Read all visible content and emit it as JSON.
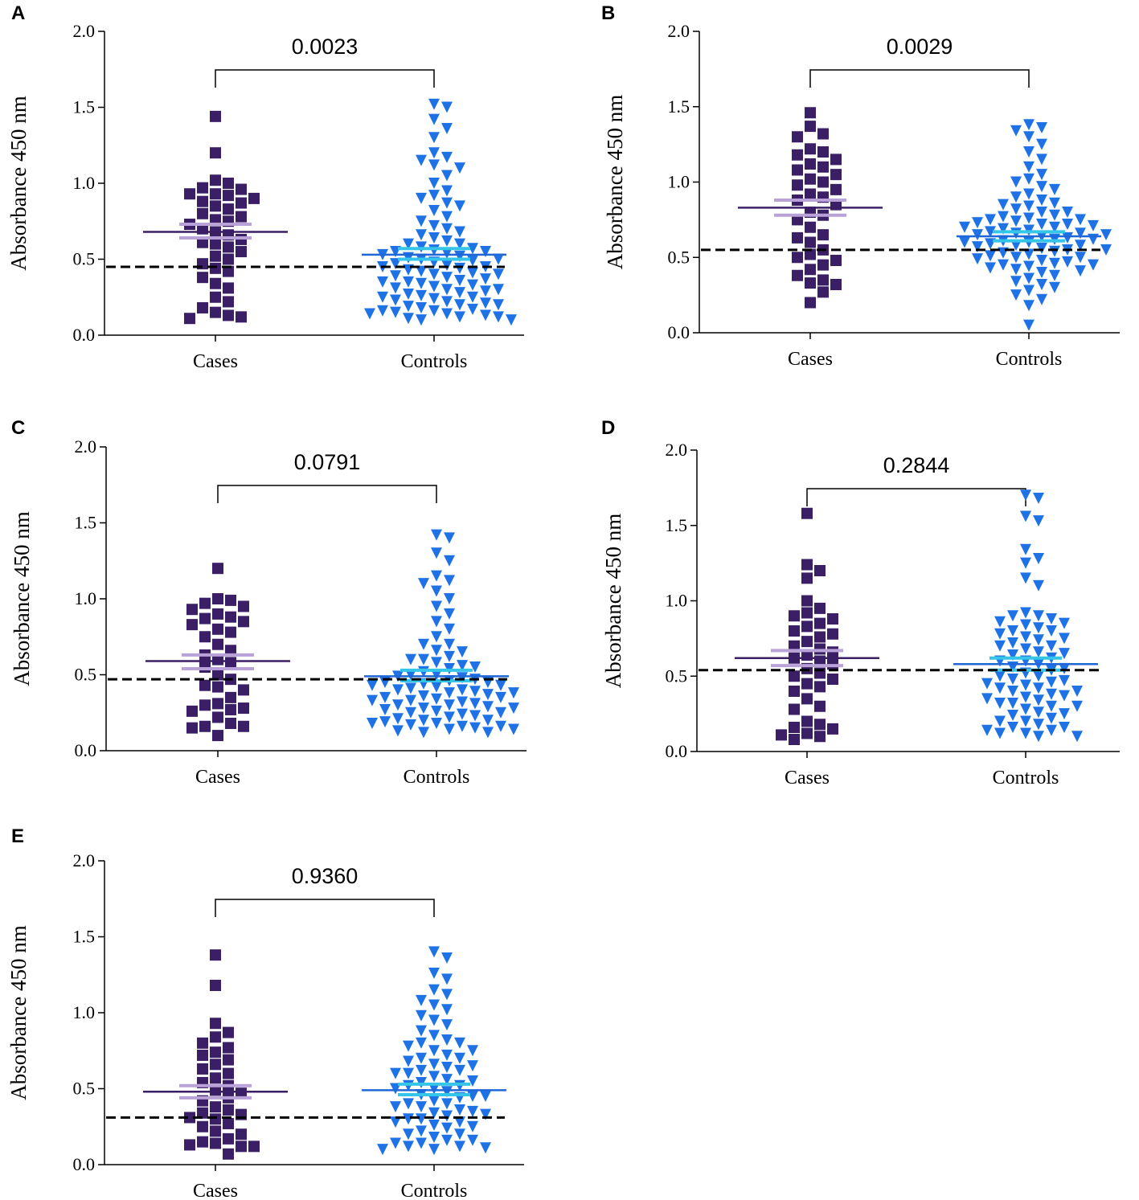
{
  "colors": {
    "cases_marker": "#3b1f66",
    "controls_marker": "#1f72e6",
    "cases_mean": "#3b1f66",
    "cases_sem": "#b9a2d8",
    "controls_mean": "#1f66d6",
    "controls_sem": "#35c5e8",
    "cutoff": "#000000"
  },
  "chart_data": [
    {
      "panel": "A",
      "type": "scatter",
      "ylabel": "Absorbance 450 nm",
      "ylim": [
        0,
        2.0
      ],
      "yticks": [
        "0.0",
        "0.5",
        "1.0",
        "1.5",
        "2.0"
      ],
      "categories": [
        "Cases",
        "Controls"
      ],
      "p_value": "0.0023",
      "cutoff": 0.45,
      "series": [
        {
          "name": "Cases",
          "marker": "square",
          "mean": 0.68,
          "sem_low": 0.64,
          "sem_high": 0.73,
          "values": [
            1.44,
            1.2,
            1.02,
            1.0,
            0.97,
            0.96,
            0.93,
            0.93,
            0.92,
            0.9,
            0.88,
            0.87,
            0.85,
            0.83,
            0.8,
            0.78,
            0.76,
            0.75,
            0.73,
            0.7,
            0.68,
            0.66,
            0.63,
            0.61,
            0.6,
            0.58,
            0.55,
            0.52,
            0.5,
            0.47,
            0.44,
            0.42,
            0.38,
            0.34,
            0.31,
            0.25,
            0.22,
            0.18,
            0.15,
            0.13,
            0.12,
            0.11
          ]
        },
        {
          "name": "Controls",
          "marker": "triangle-down",
          "mean": 0.53,
          "sem_low": 0.5,
          "sem_high": 0.57,
          "values": [
            1.52,
            1.5,
            1.42,
            1.36,
            1.3,
            1.2,
            1.17,
            1.15,
            1.12,
            1.1,
            1.05,
            1.0,
            0.95,
            0.92,
            0.9,
            0.87,
            0.85,
            0.82,
            0.78,
            0.75,
            0.72,
            0.7,
            0.68,
            0.66,
            0.64,
            0.62,
            0.6,
            0.58,
            0.57,
            0.56,
            0.55,
            0.54,
            0.53,
            0.52,
            0.51,
            0.5,
            0.49,
            0.48,
            0.47,
            0.46,
            0.45,
            0.44,
            0.43,
            0.42,
            0.41,
            0.4,
            0.39,
            0.38,
            0.37,
            0.36,
            0.35,
            0.34,
            0.33,
            0.32,
            0.31,
            0.3,
            0.29,
            0.28,
            0.27,
            0.26,
            0.25,
            0.24,
            0.23,
            0.22,
            0.21,
            0.2,
            0.19,
            0.18,
            0.17,
            0.16,
            0.15,
            0.14,
            0.13,
            0.12,
            0.11,
            0.1,
            0.1,
            0.12,
            0.14,
            0.16,
            0.2,
            0.25,
            0.3,
            0.35,
            0.4,
            0.45,
            0.5,
            0.55,
            0.6
          ]
        }
      ]
    },
    {
      "panel": "B",
      "type": "scatter",
      "ylabel": "Absorbance 450 nm",
      "ylim": [
        0,
        2.0
      ],
      "yticks": [
        "0.0",
        "0.5",
        "1.0",
        "1.5",
        "2.0"
      ],
      "categories": [
        "Cases",
        "Controls"
      ],
      "p_value": "0.0029",
      "cutoff": 0.55,
      "series": [
        {
          "name": "Cases",
          "marker": "square",
          "mean": 0.83,
          "sem_low": 0.78,
          "sem_high": 0.88,
          "values": [
            1.46,
            1.37,
            1.32,
            1.3,
            1.22,
            1.2,
            1.18,
            1.15,
            1.12,
            1.1,
            1.08,
            1.05,
            1.02,
            1.0,
            0.98,
            0.95,
            0.92,
            0.9,
            0.88,
            0.85,
            0.8,
            0.78,
            0.75,
            0.7,
            0.65,
            0.63,
            0.6,
            0.55,
            0.52,
            0.5,
            0.48,
            0.45,
            0.42,
            0.38,
            0.35,
            0.33,
            0.32,
            0.27,
            0.2
          ]
        },
        {
          "name": "Controls",
          "marker": "triangle-down",
          "mean": 0.64,
          "sem_low": 0.61,
          "sem_high": 0.67,
          "values": [
            1.38,
            1.36,
            1.34,
            1.3,
            1.25,
            1.2,
            1.15,
            1.1,
            1.05,
            1.02,
            1.0,
            0.97,
            0.95,
            0.92,
            0.9,
            0.88,
            0.86,
            0.84,
            0.82,
            0.8,
            0.78,
            0.77,
            0.76,
            0.75,
            0.74,
            0.73,
            0.72,
            0.71,
            0.7,
            0.69,
            0.68,
            0.67,
            0.66,
            0.65,
            0.64,
            0.63,
            0.62,
            0.61,
            0.6,
            0.59,
            0.58,
            0.57,
            0.56,
            0.55,
            0.54,
            0.53,
            0.52,
            0.51,
            0.5,
            0.49,
            0.48,
            0.47,
            0.46,
            0.45,
            0.44,
            0.43,
            0.42,
            0.41,
            0.4,
            0.38,
            0.36,
            0.34,
            0.32,
            0.3,
            0.28,
            0.25,
            0.22,
            0.18,
            0.05,
            0.55,
            0.6,
            0.65,
            0.7,
            0.75,
            0.5,
            0.45,
            0.62,
            0.58,
            0.66,
            0.72,
            0.8,
            0.85
          ]
        }
      ]
    },
    {
      "panel": "C",
      "type": "scatter",
      "ylabel": "Absorbance 450 nm",
      "ylim": [
        0,
        2.0
      ],
      "yticks": [
        "0.0",
        "0.5",
        "1.0",
        "1.5",
        "2.0"
      ],
      "categories": [
        "Cases",
        "Controls"
      ],
      "p_value": "0.0791",
      "cutoff": 0.47,
      "series": [
        {
          "name": "Cases",
          "marker": "square",
          "mean": 0.59,
          "sem_low": 0.54,
          "sem_high": 0.63,
          "values": [
            1.2,
            1.0,
            0.99,
            0.97,
            0.95,
            0.93,
            0.9,
            0.88,
            0.87,
            0.85,
            0.83,
            0.8,
            0.78,
            0.75,
            0.7,
            0.66,
            0.63,
            0.6,
            0.58,
            0.55,
            0.5,
            0.47,
            0.43,
            0.42,
            0.4,
            0.35,
            0.31,
            0.3,
            0.28,
            0.27,
            0.26,
            0.22,
            0.18,
            0.16,
            0.16,
            0.15,
            0.1
          ]
        },
        {
          "name": "Controls",
          "marker": "triangle-down",
          "mean": 0.49,
          "sem_low": 0.46,
          "sem_high": 0.53,
          "values": [
            1.42,
            1.4,
            1.3,
            1.25,
            1.15,
            1.12,
            1.1,
            1.05,
            1.0,
            0.95,
            0.9,
            0.85,
            0.8,
            0.75,
            0.7,
            0.66,
            0.62,
            0.6,
            0.58,
            0.56,
            0.54,
            0.52,
            0.5,
            0.49,
            0.48,
            0.47,
            0.46,
            0.45,
            0.44,
            0.43,
            0.42,
            0.41,
            0.4,
            0.39,
            0.38,
            0.37,
            0.36,
            0.35,
            0.34,
            0.33,
            0.32,
            0.31,
            0.3,
            0.29,
            0.28,
            0.27,
            0.26,
            0.25,
            0.24,
            0.23,
            0.22,
            0.21,
            0.2,
            0.19,
            0.18,
            0.17,
            0.16,
            0.15,
            0.14,
            0.13,
            0.12,
            0.12,
            0.14,
            0.16,
            0.18,
            0.2,
            0.25,
            0.3,
            0.35,
            0.4,
            0.45,
            0.5,
            0.55,
            0.6,
            0.65,
            0.7,
            0.28,
            0.33,
            0.38,
            0.43
          ]
        }
      ]
    },
    {
      "panel": "D",
      "type": "scatter",
      "ylabel": "Absorbance 450 nm",
      "ylim": [
        0,
        2.0
      ],
      "yticks": [
        "0.0",
        "0.5",
        "1.0",
        "1.5",
        "2.0"
      ],
      "categories": [
        "Cases",
        "Controls"
      ],
      "p_value": "0.2844",
      "cutoff": 0.54,
      "series": [
        {
          "name": "Cases",
          "marker": "square",
          "mean": 0.62,
          "sem_low": 0.57,
          "sem_high": 0.67,
          "values": [
            1.58,
            1.24,
            1.2,
            1.15,
            1.0,
            0.95,
            0.92,
            0.9,
            0.88,
            0.85,
            0.83,
            0.8,
            0.78,
            0.76,
            0.73,
            0.7,
            0.68,
            0.66,
            0.64,
            0.62,
            0.6,
            0.58,
            0.55,
            0.52,
            0.5,
            0.48,
            0.45,
            0.43,
            0.4,
            0.35,
            0.3,
            0.28,
            0.2,
            0.18,
            0.16,
            0.15,
            0.12,
            0.11,
            0.1,
            0.08
          ]
        },
        {
          "name": "Controls",
          "marker": "triangle-down",
          "mean": 0.58,
          "sem_low": 0.54,
          "sem_high": 0.62,
          "values": [
            1.7,
            1.68,
            1.56,
            1.53,
            1.34,
            1.28,
            1.25,
            1.15,
            1.1,
            0.92,
            0.9,
            0.88,
            0.86,
            0.84,
            0.82,
            0.8,
            0.78,
            0.76,
            0.74,
            0.72,
            0.7,
            0.68,
            0.66,
            0.64,
            0.62,
            0.6,
            0.58,
            0.56,
            0.54,
            0.52,
            0.5,
            0.48,
            0.46,
            0.44,
            0.42,
            0.4,
            0.38,
            0.36,
            0.34,
            0.32,
            0.3,
            0.28,
            0.26,
            0.24,
            0.22,
            0.2,
            0.18,
            0.16,
            0.14,
            0.12,
            0.1,
            0.1,
            0.12,
            0.14,
            0.16,
            0.2,
            0.25,
            0.3,
            0.35,
            0.4,
            0.45,
            0.5,
            0.55,
            0.6,
            0.65,
            0.7,
            0.75,
            0.8,
            0.85,
            0.9,
            0.32,
            0.37,
            0.42,
            0.47
          ]
        }
      ]
    },
    {
      "panel": "E",
      "type": "scatter",
      "ylabel": "Absorbance 450 nm",
      "ylim": [
        0,
        2.0
      ],
      "yticks": [
        "0.0",
        "0.5",
        "1.0",
        "1.5",
        "2.0"
      ],
      "categories": [
        "Cases",
        "Controls"
      ],
      "p_value": "0.9360",
      "cutoff": 0.31,
      "series": [
        {
          "name": "Cases",
          "marker": "square",
          "mean": 0.48,
          "sem_low": 0.44,
          "sem_high": 0.52,
          "values": [
            1.38,
            1.18,
            0.93,
            0.87,
            0.84,
            0.8,
            0.77,
            0.74,
            0.72,
            0.69,
            0.66,
            0.63,
            0.6,
            0.57,
            0.54,
            0.52,
            0.49,
            0.47,
            0.44,
            0.42,
            0.38,
            0.36,
            0.34,
            0.33,
            0.31,
            0.3,
            0.27,
            0.25,
            0.22,
            0.2,
            0.17,
            0.15,
            0.14,
            0.13,
            0.12,
            0.12,
            0.07
          ]
        },
        {
          "name": "Controls",
          "marker": "triangle-down",
          "mean": 0.49,
          "sem_low": 0.46,
          "sem_high": 0.53,
          "values": [
            1.4,
            1.36,
            1.26,
            1.22,
            1.15,
            1.12,
            1.08,
            1.05,
            1.02,
            0.98,
            0.95,
            0.92,
            0.88,
            0.85,
            0.82,
            0.8,
            0.78,
            0.75,
            0.72,
            0.7,
            0.68,
            0.66,
            0.64,
            0.62,
            0.6,
            0.58,
            0.56,
            0.54,
            0.52,
            0.5,
            0.48,
            0.46,
            0.44,
            0.42,
            0.4,
            0.38,
            0.36,
            0.34,
            0.32,
            0.3,
            0.28,
            0.26,
            0.24,
            0.22,
            0.2,
            0.18,
            0.16,
            0.14,
            0.12,
            0.11,
            0.1,
            0.1,
            0.12,
            0.14,
            0.16,
            0.2,
            0.25,
            0.3,
            0.35,
            0.4,
            0.45,
            0.5,
            0.55,
            0.6,
            0.65,
            0.7,
            0.75,
            0.8,
            0.45,
            0.38,
            0.52,
            0.62,
            0.28,
            0.33
          ]
        }
      ]
    }
  ]
}
